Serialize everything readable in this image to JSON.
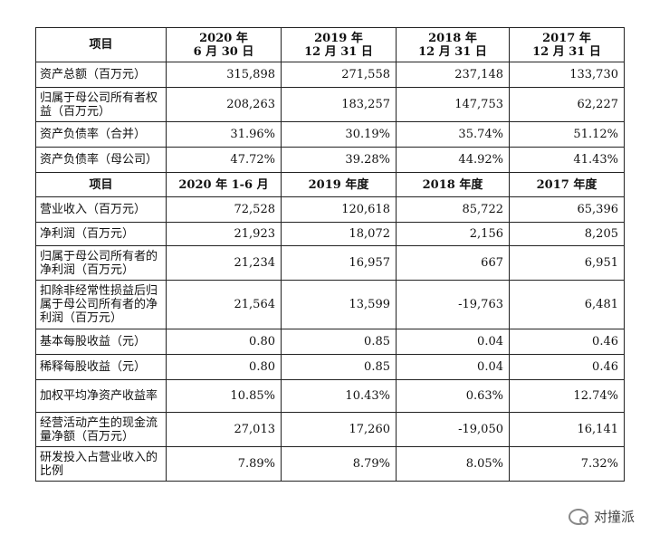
{
  "header1": {
    "item": "项目",
    "cols": [
      {
        "line1": "2020 年",
        "line2": "6 月 30 日"
      },
      {
        "line1": "2019 年",
        "line2": "12 月 31 日"
      },
      {
        "line1": "2018 年",
        "line2": "12 月 31 日"
      },
      {
        "line1": "2017 年",
        "line2": "12 月 31 日"
      }
    ]
  },
  "rows1": [
    {
      "label": "资产总额（百万元）",
      "values": [
        "315,898",
        "271,558",
        "237,148",
        "133,730"
      ]
    },
    {
      "label": "归属于母公司所有者权益（百万元）",
      "values": [
        "208,263",
        "183,257",
        "147,753",
        "62,227"
      ]
    },
    {
      "label": "资产负债率（合并）",
      "values": [
        "31.96%",
        "30.19%",
        "35.74%",
        "51.12%"
      ]
    },
    {
      "label": "资产负债率（母公司）",
      "values": [
        "47.72%",
        "39.28%",
        "44.92%",
        "41.43%"
      ]
    }
  ],
  "header2": {
    "item": "项目",
    "cols": [
      "2020 年 1-6 月",
      "2019 年度",
      "2018 年度",
      "2017 年度"
    ]
  },
  "rows2": [
    {
      "label": "营业收入（百万元）",
      "values": [
        "72,528",
        "120,618",
        "85,722",
        "65,396"
      ]
    },
    {
      "label": "净利润（百万元）",
      "values": [
        "21,923",
        "18,072",
        "2,156",
        "8,205"
      ]
    },
    {
      "label": "归属于母公司所有者的净利润（百万元）",
      "values": [
        "21,234",
        "16,957",
        "667",
        "6,951"
      ]
    },
    {
      "label": "扣除非经常性损益后归属于母公司所有者的净利润（百万元）",
      "values": [
        "21,564",
        "13,599",
        "-19,763",
        "6,481"
      ]
    },
    {
      "label": "基本每股收益（元）",
      "values": [
        "0.80",
        "0.85",
        "0.04",
        "0.46"
      ]
    },
    {
      "label": "稀释每股收益（元）",
      "values": [
        "0.80",
        "0.85",
        "0.04",
        "0.46"
      ]
    },
    {
      "label": "加权平均净资产收益率",
      "values": [
        "10.85%",
        "10.43%",
        "0.63%",
        "12.74%"
      ]
    },
    {
      "label": "经营活动产生的现金流量净额（百万元）",
      "values": [
        "27,013",
        "17,260",
        "-19,050",
        "16,141"
      ]
    },
    {
      "label": "研发投入占营业收入的比例",
      "values": [
        "7.89%",
        "8.79%",
        "8.05%",
        "7.32%"
      ]
    }
  ],
  "watermark": {
    "text": "对撞派",
    "icon": "wechat-icon"
  }
}
